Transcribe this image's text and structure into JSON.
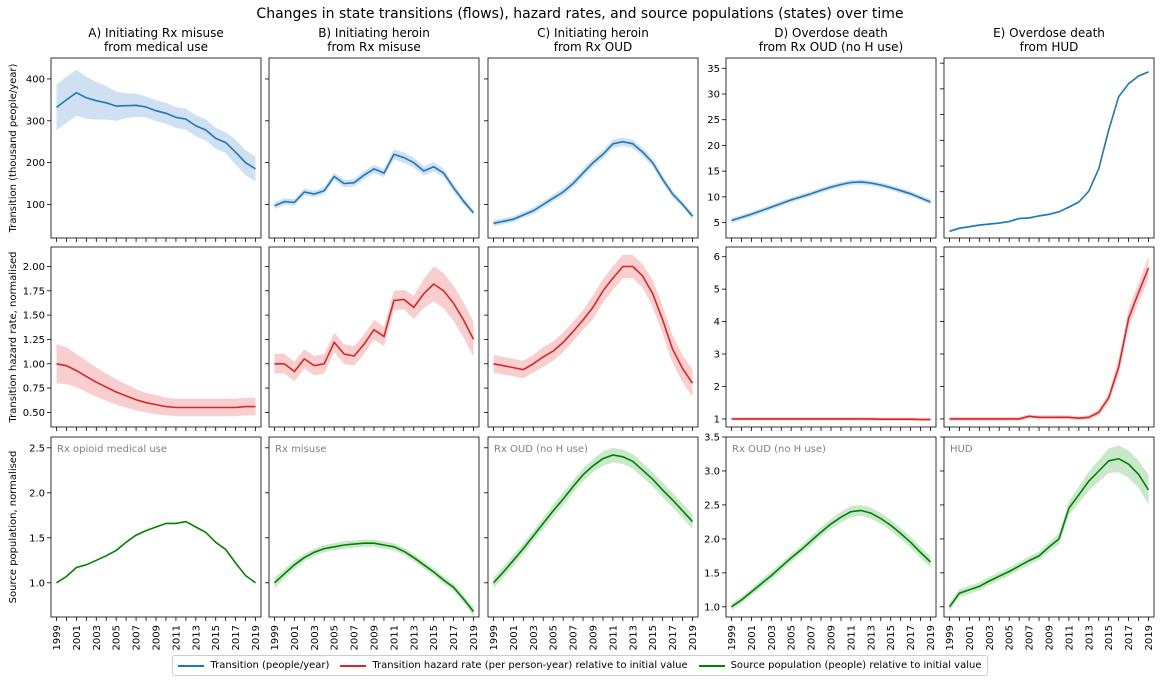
{
  "title": "Changes in state transitions (flows), hazard rates, and source populations (states) over time",
  "legend": {
    "transition": "Transition (people/year)",
    "hazard": "Transition hazard rate (per person-year) relative to initial value",
    "population": "Source population (people) relative to initial value"
  },
  "colors": {
    "transition": "#1f77b4",
    "hazard": "#d62728",
    "population": "#008000",
    "transition_band": "#c6dbef",
    "hazard_band": "#f7c6c6",
    "population_band": "#bfe3bf",
    "subplot_label": "#808080"
  },
  "row_labels": [
    "Transition (thousand people/year)",
    "Transition hazard rate, normalised",
    "Source population, normalised"
  ],
  "column_titles": [
    [
      "A) Initiating Rx misuse",
      "from medical use"
    ],
    [
      "B) Initiating heroin",
      "from Rx misuse"
    ],
    [
      "C) Initiating heroin",
      "from Rx OUD"
    ],
    [
      "D) Overdose death",
      "from Rx OUD (no H use)"
    ],
    [
      "E) Overdose death",
      "from HUD"
    ]
  ],
  "x_tick_labels": [
    "1999",
    "2001",
    "2003",
    "2005",
    "2007",
    "2009",
    "2011",
    "2013",
    "2015",
    "2017",
    "2019"
  ],
  "chart_data": {
    "type": "line",
    "x": [
      1999,
      2000,
      2001,
      2002,
      2003,
      2004,
      2005,
      2006,
      2007,
      2008,
      2009,
      2010,
      2011,
      2012,
      2013,
      2014,
      2015,
      2016,
      2017,
      2018,
      2019
    ],
    "rows": [
      {
        "name": "transition",
        "panels": [
          {
            "ylim": [
              20,
              450
            ],
            "yticks": [
              100,
              200,
              300,
              400
            ],
            "sharey": false,
            "values": [
              332,
              350,
              367,
              355,
              348,
              343,
              335,
              336,
              337,
              333,
              324,
              318,
              308,
              304,
              288,
              278,
              258,
              248,
              225,
              200,
              185
            ],
            "band": [
              55,
              55,
              55,
              50,
              45,
              40,
              35,
              30,
              28,
              25,
              25,
              25,
              25,
              25,
              25,
              25,
              25,
              25,
              30,
              30,
              30
            ]
          },
          {
            "ylim": [
              20,
              450
            ],
            "yticks": [
              100,
              200,
              300,
              400
            ],
            "sharey": true,
            "values": [
              97,
              107,
              105,
              130,
              125,
              133,
              167,
              150,
              152,
              170,
              185,
              175,
              220,
              212,
              200,
              180,
              190,
              175,
              140,
              108,
              80
            ],
            "band": [
              8,
              8,
              8,
              8,
              8,
              8,
              9,
              9,
              9,
              10,
              10,
              10,
              12,
              12,
              12,
              11,
              11,
              10,
              9,
              8,
              7
            ]
          },
          {
            "ylim": [
              20,
              450
            ],
            "yticks": [
              100,
              200,
              300,
              400
            ],
            "sharey": true,
            "values": [
              55,
              60,
              65,
              75,
              85,
              100,
              115,
              130,
              150,
              175,
              200,
              220,
              245,
              250,
              245,
              225,
              200,
              160,
              125,
              100,
              72
            ],
            "band": [
              7,
              7,
              7,
              7,
              8,
              8,
              8,
              9,
              9,
              10,
              10,
              10,
              10,
              10,
              10,
              10,
              10,
              9,
              8,
              7,
              7
            ]
          },
          {
            "ylim": [
              2,
              37
            ],
            "yticks": [
              5,
              10,
              15,
              20,
              25,
              30,
              35
            ],
            "sharey": false,
            "values": [
              5.4,
              6.0,
              6.6,
              7.3,
              8.0,
              8.7,
              9.4,
              10.0,
              10.6,
              11.3,
              11.9,
              12.4,
              12.8,
              12.9,
              12.7,
              12.3,
              11.8,
              11.2,
              10.6,
              9.8,
              9.0
            ],
            "band": [
              0.5,
              0.5,
              0.5,
              0.5,
              0.5,
              0.5,
              0.5,
              0.5,
              0.5,
              0.5,
              0.5,
              0.5,
              0.5,
              0.5,
              0.5,
              0.5,
              0.5,
              0.5,
              0.5,
              0.5,
              0.5
            ]
          },
          {
            "ylim": [
              1,
              36
            ],
            "yticks": [],
            "sharey": true,
            "values": [
              2.3,
              2.9,
              3.2,
              3.5,
              3.7,
              3.9,
              4.2,
              4.8,
              4.9,
              5.3,
              5.6,
              6.1,
              7.0,
              8.0,
              10.1,
              14.5,
              22.0,
              28.5,
              31.0,
              32.5,
              33.3
            ],
            "band": [
              0.2,
              0.2,
              0.2,
              0.2,
              0.2,
              0.2,
              0.2,
              0.2,
              0.2,
              0.2,
              0.2,
              0.2,
              0.2,
              0.2,
              0.2,
              0.2,
              0.2,
              0.2,
              0.2,
              0.2,
              0.2
            ]
          }
        ]
      },
      {
        "name": "hazard",
        "panels": [
          {
            "ylim": [
              0.35,
              2.2
            ],
            "yticks": [
              0.5,
              0.75,
              1.0,
              1.25,
              1.5,
              1.75,
              2.0
            ],
            "ytick_labels": [
              "0.50",
              "0.75",
              "1.00",
              "1.25",
              "1.50",
              "1.75",
              "2.00"
            ],
            "sharey": false,
            "values": [
              1.0,
              0.98,
              0.93,
              0.87,
              0.81,
              0.76,
              0.71,
              0.67,
              0.63,
              0.6,
              0.58,
              0.56,
              0.55,
              0.55,
              0.55,
              0.55,
              0.55,
              0.55,
              0.55,
              0.56,
              0.56
            ],
            "band": [
              0.2,
              0.19,
              0.17,
              0.16,
              0.15,
              0.14,
              0.13,
              0.12,
              0.11,
              0.1,
              0.1,
              0.09,
              0.09,
              0.09,
              0.09,
              0.09,
              0.09,
              0.09,
              0.09,
              0.09,
              0.09
            ]
          },
          {
            "ylim": [
              0.35,
              2.2
            ],
            "yticks": [
              0.5,
              0.75,
              1.0,
              1.25,
              1.5,
              1.75,
              2.0
            ],
            "sharey": true,
            "values": [
              1.0,
              1.0,
              0.92,
              1.05,
              0.98,
              1.0,
              1.22,
              1.1,
              1.08,
              1.2,
              1.35,
              1.28,
              1.65,
              1.66,
              1.58,
              1.72,
              1.82,
              1.75,
              1.62,
              1.45,
              1.25
            ],
            "band": [
              0.1,
              0.1,
              0.1,
              0.1,
              0.1,
              0.1,
              0.1,
              0.1,
              0.1,
              0.1,
              0.1,
              0.1,
              0.1,
              0.1,
              0.12,
              0.15,
              0.18,
              0.18,
              0.18,
              0.18,
              0.18
            ]
          },
          {
            "ylim": [
              0.35,
              2.2
            ],
            "yticks": [
              0.5,
              0.75,
              1.0,
              1.25,
              1.5,
              1.75,
              2.0
            ],
            "sharey": true,
            "values": [
              1.0,
              0.98,
              0.96,
              0.94,
              1.0,
              1.07,
              1.13,
              1.22,
              1.33,
              1.45,
              1.58,
              1.75,
              1.88,
              2.0,
              2.0,
              1.9,
              1.72,
              1.45,
              1.15,
              0.95,
              0.8
            ],
            "band": [
              0.09,
              0.09,
              0.09,
              0.09,
              0.09,
              0.1,
              0.1,
              0.1,
              0.1,
              0.1,
              0.12,
              0.12,
              0.12,
              0.12,
              0.12,
              0.12,
              0.14,
              0.14,
              0.14,
              0.14,
              0.14
            ]
          },
          {
            "ylim": [
              0.75,
              6.3
            ],
            "yticks": [
              1,
              2,
              3,
              4,
              5,
              6
            ],
            "sharey": false,
            "values": [
              1.0,
              1.0,
              1.0,
              1.0,
              1.0,
              1.0,
              1.0,
              1.0,
              1.0,
              1.0,
              1.0,
              1.0,
              1.0,
              1.0,
              1.0,
              0.99,
              0.99,
              0.99,
              0.99,
              0.98,
              0.98
            ],
            "band": [
              0.05,
              0.05,
              0.05,
              0.05,
              0.05,
              0.05,
              0.05,
              0.05,
              0.05,
              0.05,
              0.05,
              0.05,
              0.05,
              0.05,
              0.05,
              0.05,
              0.05,
              0.05,
              0.05,
              0.05,
              0.05
            ]
          },
          {
            "ylim": [
              0.75,
              6.3
            ],
            "yticks": [],
            "sharey": true,
            "values": [
              1.0,
              1.0,
              1.0,
              1.0,
              1.0,
              1.0,
              1.0,
              1.0,
              1.08,
              1.05,
              1.05,
              1.05,
              1.05,
              1.02,
              1.05,
              1.2,
              1.65,
              2.6,
              4.1,
              4.9,
              5.65
            ],
            "band": [
              0.06,
              0.06,
              0.06,
              0.06,
              0.06,
              0.06,
              0.06,
              0.06,
              0.06,
              0.06,
              0.06,
              0.06,
              0.06,
              0.06,
              0.06,
              0.1,
              0.15,
              0.25,
              0.3,
              0.3,
              0.35
            ]
          }
        ]
      },
      {
        "name": "population",
        "panels": [
          {
            "ylim": [
              0.62,
              2.62
            ],
            "yticks": [
              1.0,
              1.5,
              2.0,
              2.5
            ],
            "ytick_labels": [
              "1.0",
              "1.5",
              "2.0",
              "2.5"
            ],
            "sharey": false,
            "label": "Rx opioid medical use",
            "values": [
              1.0,
              1.07,
              1.17,
              1.2,
              1.25,
              1.3,
              1.36,
              1.45,
              1.53,
              1.58,
              1.62,
              1.66,
              1.66,
              1.68,
              1.62,
              1.56,
              1.45,
              1.37,
              1.22,
              1.08,
              1.0
            ],
            "band": [
              0.0,
              0.0,
              0.0,
              0.0,
              0.0,
              0.0,
              0.0,
              0.0,
              0.0,
              0.0,
              0.0,
              0.0,
              0.0,
              0.0,
              0.0,
              0.0,
              0.0,
              0.0,
              0.0,
              0.0,
              0.0
            ]
          },
          {
            "ylim": [
              0.62,
              2.62
            ],
            "yticks": [
              1.0,
              1.5,
              2.0,
              2.5
            ],
            "sharey": true,
            "label": "Rx misuse",
            "values": [
              1.0,
              1.1,
              1.2,
              1.28,
              1.34,
              1.38,
              1.4,
              1.42,
              1.43,
              1.44,
              1.44,
              1.42,
              1.4,
              1.35,
              1.28,
              1.2,
              1.12,
              1.03,
              0.95,
              0.82,
              0.68
            ],
            "band": [
              0.06,
              0.05,
              0.05,
              0.04,
              0.04,
              0.04,
              0.04,
              0.04,
              0.04,
              0.04,
              0.04,
              0.04,
              0.04,
              0.04,
              0.04,
              0.04,
              0.04,
              0.04,
              0.04,
              0.04,
              0.05
            ]
          },
          {
            "ylim": [
              0.62,
              2.62
            ],
            "yticks": [
              1.0,
              1.5,
              2.0,
              2.5
            ],
            "sharey": true,
            "label": "Rx OUD (no H use)",
            "values": [
              1.0,
              1.12,
              1.25,
              1.38,
              1.52,
              1.66,
              1.8,
              1.93,
              2.07,
              2.2,
              2.3,
              2.38,
              2.42,
              2.4,
              2.35,
              2.25,
              2.15,
              2.03,
              1.92,
              1.8,
              1.68
            ],
            "band": [
              0.06,
              0.06,
              0.06,
              0.06,
              0.06,
              0.06,
              0.07,
              0.07,
              0.07,
              0.07,
              0.07,
              0.08,
              0.08,
              0.08,
              0.08,
              0.08,
              0.08,
              0.08,
              0.08,
              0.08,
              0.08
            ]
          },
          {
            "ylim": [
              0.85,
              3.5
            ],
            "yticks": [
              1.0,
              1.5,
              2.0,
              2.5,
              3.0,
              3.5
            ],
            "ytick_labels": [
              "1.0",
              "1.5",
              "2.0",
              "2.5",
              "3.0",
              "3.5"
            ],
            "sharey": false,
            "label": "Rx OUD (no H use)",
            "values": [
              1.0,
              1.1,
              1.22,
              1.34,
              1.46,
              1.59,
              1.72,
              1.84,
              1.97,
              2.1,
              2.22,
              2.32,
              2.4,
              2.42,
              2.38,
              2.3,
              2.2,
              2.08,
              1.95,
              1.8,
              1.66
            ],
            "band": [
              0.05,
              0.05,
              0.05,
              0.06,
              0.06,
              0.06,
              0.06,
              0.06,
              0.07,
              0.07,
              0.07,
              0.08,
              0.08,
              0.08,
              0.08,
              0.08,
              0.08,
              0.08,
              0.08,
              0.08,
              0.08
            ]
          },
          {
            "ylim": [
              0.85,
              3.5
            ],
            "yticks": [],
            "sharey": true,
            "label": "HUD",
            "values": [
              1.0,
              1.2,
              1.25,
              1.3,
              1.38,
              1.45,
              1.52,
              1.6,
              1.68,
              1.75,
              1.88,
              2.0,
              2.45,
              2.65,
              2.85,
              3.0,
              3.15,
              3.18,
              3.1,
              2.95,
              2.72
            ],
            "band": [
              0.06,
              0.06,
              0.06,
              0.06,
              0.06,
              0.06,
              0.06,
              0.06,
              0.06,
              0.06,
              0.07,
              0.08,
              0.1,
              0.12,
              0.14,
              0.16,
              0.18,
              0.2,
              0.2,
              0.2,
              0.22
            ]
          }
        ]
      }
    ]
  }
}
